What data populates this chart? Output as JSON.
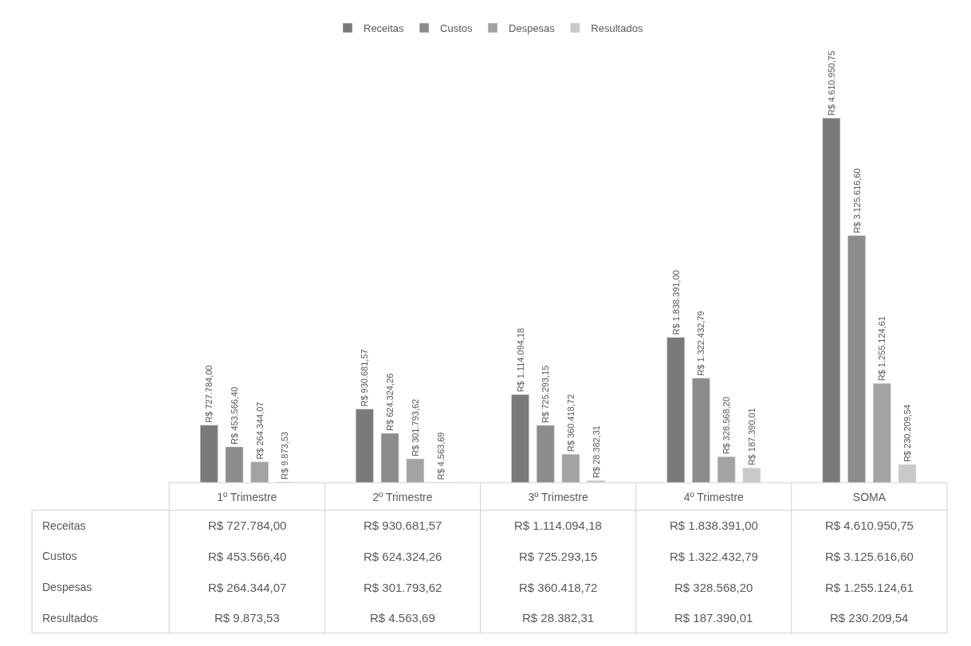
{
  "chart_data": {
    "type": "bar",
    "categories": [
      "1º Trimestre",
      "2º Trimestre",
      "3º Trimestre",
      "4º Trimestre",
      "SOMA"
    ],
    "series": [
      {
        "name": "Receitas",
        "color": "#7a7a7a",
        "values": [
          727784.0,
          930681.57,
          1114094.18,
          1838391.0,
          4610950.75
        ],
        "value_labels": [
          "R$ 727.784,00",
          "R$ 930.681,57",
          "R$ 1.114.094,18",
          "R$ 1.838.391,00",
          "R$ 4.610.950,75"
        ]
      },
      {
        "name": "Custos",
        "color": "#8c8c8c",
        "values": [
          453566.4,
          624324.26,
          725293.15,
          1322432.79,
          3125616.6
        ],
        "value_labels": [
          "R$ 453.566,40",
          "R$ 624.324,26",
          "R$ 725.293,15",
          "R$ 1.322.432,79",
          "R$ 3.125.616,60"
        ]
      },
      {
        "name": "Despesas",
        "color": "#a3a3a3",
        "values": [
          264344.07,
          301793.62,
          360418.72,
          328568.2,
          1255124.61
        ],
        "value_labels": [
          "R$ 264.344,07",
          "R$ 301.793,62",
          "R$ 360.418,72",
          "R$ 328.568,20",
          "R$ 1.255.124,61"
        ]
      },
      {
        "name": "Resultados",
        "color": "#c9c9c9",
        "values": [
          9873.53,
          4563.69,
          28382.31,
          187390.01,
          230209.54
        ],
        "value_labels": [
          "R$ 9.873,53",
          "R$ 4.563,69",
          "R$ 28.382,31",
          "R$ 187.390,01",
          "R$ 230.209,54"
        ]
      }
    ],
    "legend": "top"
  }
}
